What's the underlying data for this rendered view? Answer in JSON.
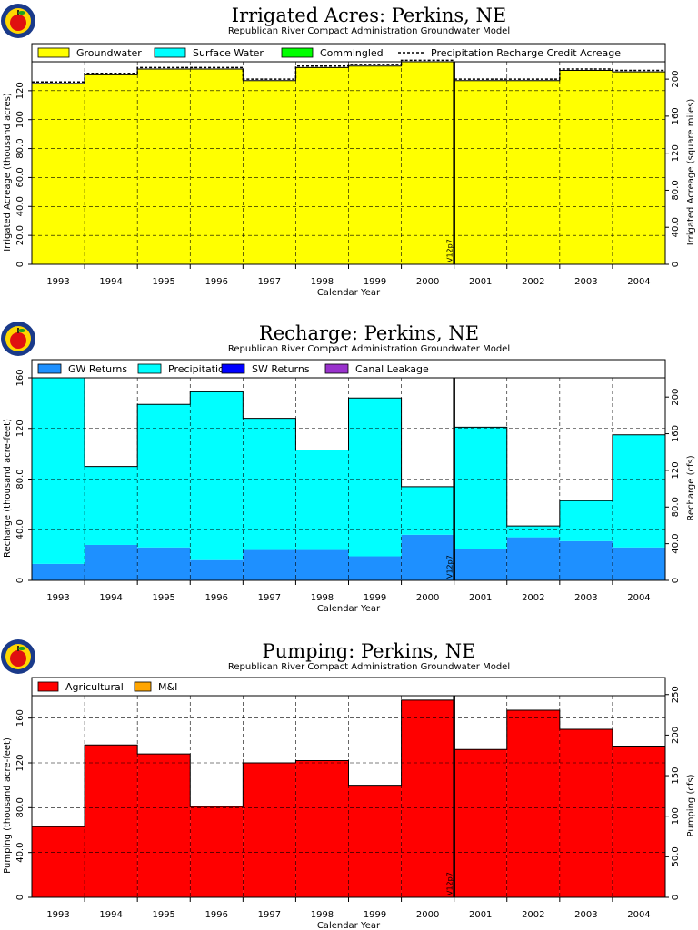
{
  "chart_data": [
    {
      "type": "bar",
      "title": "Irrigated Acres:  Perkins, NE",
      "subtitle": "Republican River Compact Administration Groundwater Model",
      "xlabel": "Calendar Year",
      "ylabel": "Irrigated Acreage (thousand acres)",
      "ylabel_right": "Irrigated Acreage (square miles)",
      "categories": [
        "1993",
        "1994",
        "1995",
        "1996",
        "1997",
        "1998",
        "1999",
        "2000",
        "2001",
        "2002",
        "2003",
        "2004"
      ],
      "ylim": [
        0,
        140
      ],
      "yticks": [
        "0",
        "20.0",
        "40.0",
        "60.0",
        "80.0",
        "100",
        "120"
      ],
      "yticks_right": [
        "0",
        "40.0",
        "80.0",
        "120",
        "160",
        "200"
      ],
      "y2lim": [
        0,
        218.75
      ],
      "grid": true,
      "legend_position": "top",
      "colors": {
        "Groundwater": "#ffff00",
        "Surface Water": "#00ffff",
        "Commingled": "#00ff00"
      },
      "series": [
        {
          "name": "Groundwater",
          "values": [
            125,
            131,
            135,
            135,
            127,
            136,
            137,
            140,
            127,
            127,
            134,
            133
          ]
        },
        {
          "name": "Surface Water",
          "values": [
            0,
            0,
            0,
            0,
            0,
            0,
            0,
            0,
            0,
            0,
            0,
            0
          ]
        },
        {
          "name": "Commingled",
          "values": [
            0,
            0,
            0,
            0,
            0,
            0,
            0,
            0,
            0,
            0,
            0,
            0
          ]
        },
        {
          "name": "Precipitation Recharge Credit Acreage",
          "style": "dashed-line",
          "values": [
            126,
            132,
            136,
            136,
            128,
            137,
            138,
            141,
            128,
            128,
            135,
            134
          ]
        }
      ],
      "vline": {
        "x": "2000.5",
        "label": "V12p7"
      }
    },
    {
      "type": "bar",
      "title": "Recharge:  Perkins, NE",
      "subtitle": "Republican River Compact Administration Groundwater Model",
      "xlabel": "Calendar Year",
      "ylabel": "Recharge (thousand acre-feet)",
      "ylabel_right": "Recharge (cfs)",
      "categories": [
        "1993",
        "1994",
        "1995",
        "1996",
        "1997",
        "1998",
        "1999",
        "2000",
        "2001",
        "2002",
        "2003",
        "2004"
      ],
      "ylim": [
        0,
        160
      ],
      "yticks": [
        "0",
        "40.0",
        "80.0",
        "120",
        "160"
      ],
      "yticks_right": [
        "0",
        "40.0",
        "80.0",
        "120",
        "160",
        "200"
      ],
      "y2lim": [
        0,
        221
      ],
      "grid": true,
      "legend_position": "top",
      "colors": {
        "Precipitation": "#00ffff",
        "GW Returns": "#1e90ff",
        "SW Returns": "#0000ff",
        "Canal Leakage": "#9932cc"
      },
      "series": [
        {
          "name": "GW Returns",
          "values": [
            13,
            28,
            26,
            16,
            24,
            24,
            19,
            36,
            25,
            34,
            31,
            26
          ]
        },
        {
          "name": "Precipitation",
          "values": [
            147,
            62,
            113,
            133,
            104,
            79,
            125,
            38,
            96,
            9,
            32,
            89
          ]
        },
        {
          "name": "SW Returns",
          "values": [
            0,
            0,
            0,
            0,
            0,
            0,
            0,
            0,
            0,
            0,
            0,
            0
          ]
        },
        {
          "name": "Canal Leakage",
          "values": [
            0,
            0,
            0,
            0,
            0,
            0,
            0,
            0,
            0,
            0,
            0,
            0
          ]
        }
      ],
      "vline": {
        "x": "2000.5",
        "label": "V12p7"
      }
    },
    {
      "type": "bar",
      "title": "Pumping:  Perkins, NE",
      "subtitle": "Republican River Compact Administration Groundwater Model",
      "xlabel": "Calendar Year",
      "ylabel": "Pumping (thousand acre-feet)",
      "ylabel_right": "Pumping (cfs)",
      "categories": [
        "1993",
        "1994",
        "1995",
        "1996",
        "1997",
        "1998",
        "1999",
        "2000",
        "2001",
        "2002",
        "2003",
        "2004"
      ],
      "ylim": [
        0,
        180
      ],
      "yticks": [
        "0",
        "40.0",
        "80.0",
        "120",
        "160"
      ],
      "yticks_right": [
        "0",
        "50.0",
        "100",
        "150",
        "200",
        "250"
      ],
      "y2lim": [
        0,
        248.6
      ],
      "grid": true,
      "legend_position": "top",
      "colors": {
        "Agricultural": "#ff0000",
        "M&I": "#ffa500"
      },
      "series": [
        {
          "name": "Agricultural",
          "values": [
            63,
            136,
            128,
            81,
            120,
            122,
            100,
            176,
            132,
            167,
            150,
            135
          ]
        },
        {
          "name": "M&I",
          "values": [
            0,
            0,
            0,
            0,
            0,
            0,
            0,
            0,
            0,
            0,
            0,
            0
          ]
        }
      ],
      "vline": {
        "x": "2000.5",
        "label": "V12p7"
      }
    }
  ]
}
